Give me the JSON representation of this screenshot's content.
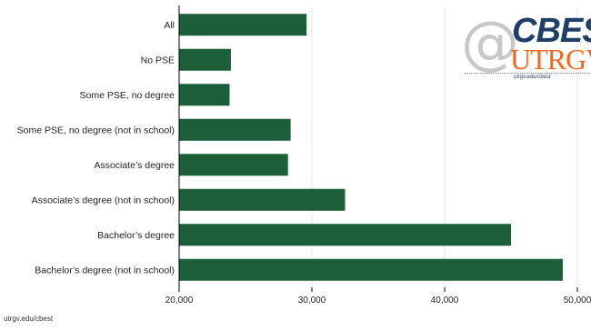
{
  "chart_data": {
    "type": "bar",
    "orientation": "horizontal",
    "categories": [
      "All",
      "No PSE",
      "Some PSE, no degree",
      "Some PSE, no degree (not in school)",
      "Associate’s degree",
      "Associate’s degree (not in school)",
      "Bachelor’s degree",
      "Bachelor’s degree (not in school)"
    ],
    "values": [
      29600,
      23900,
      23800,
      28400,
      28200,
      32500,
      45000,
      48900
    ],
    "xlim": [
      20000,
      50000
    ],
    "xticks": [
      20000,
      30000,
      40000,
      50000
    ],
    "xtick_labels": [
      "20,000",
      "30,000",
      "40,000",
      "50,000"
    ],
    "grid": true,
    "bar_color": "#1b5e37"
  },
  "logo": {
    "at": "@",
    "cbest": "CBEST",
    "utrgv": "UTRGV",
    "url": "utrgv.edu/cbest"
  },
  "footer": "utrgv.edu/cbest"
}
